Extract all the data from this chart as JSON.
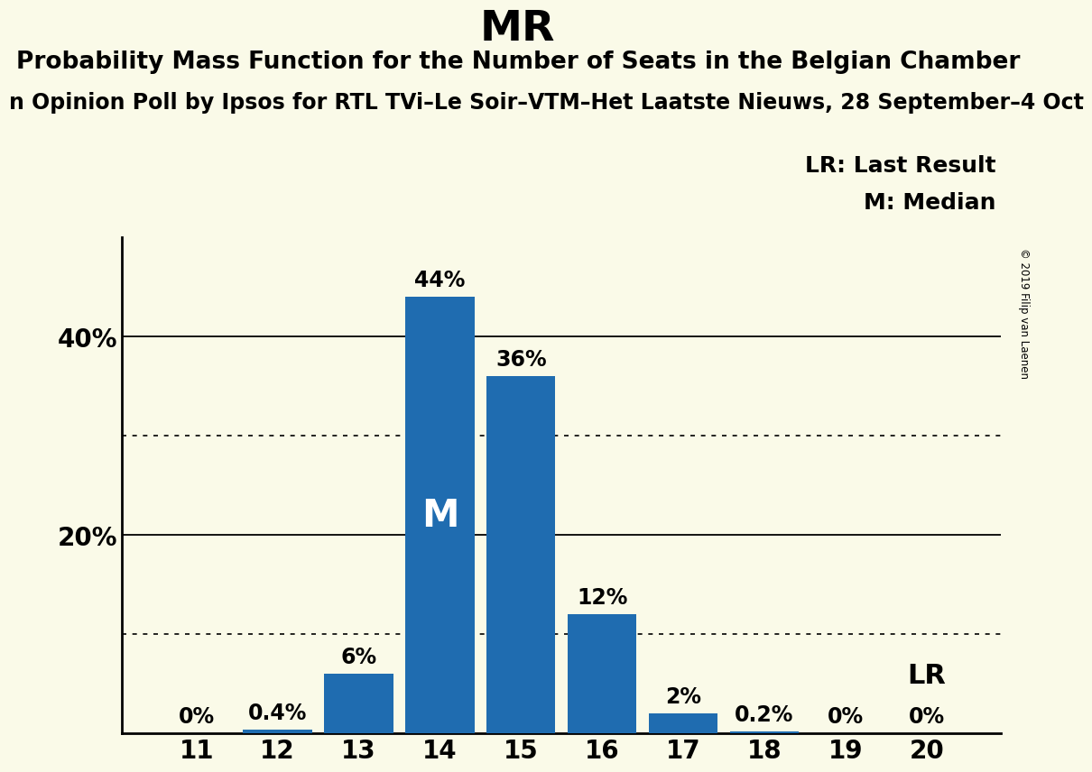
{
  "title": "MR",
  "subtitle": "Probability Mass Function for the Number of Seats in the Belgian Chamber",
  "source_line": "n Opinion Poll by Ipsos for RTL TVi–Le Soir–VTM–Het Laatste Nieuws, 28 September–4 Oct",
  "copyright": "© 2019 Filip van Laenen",
  "categories": [
    11,
    12,
    13,
    14,
    15,
    16,
    17,
    18,
    19,
    20
  ],
  "values": [
    0.0,
    0.4,
    6.0,
    44.0,
    36.0,
    12.0,
    2.0,
    0.2,
    0.0,
    0.0
  ],
  "bar_color": "#1f6cb0",
  "bar_labels": [
    "0%",
    "0.4%",
    "6%",
    "44%",
    "36%",
    "12%",
    "2%",
    "0.2%",
    "0%",
    "0%"
  ],
  "median_bar": 14,
  "median_label": "M",
  "lr_bar": 20,
  "lr_label": "LR",
  "legend_lr": "LR: Last Result",
  "legend_m": "M: Median",
  "yticks_labeled": [
    20,
    40
  ],
  "ytick_labels": [
    "20%",
    "40%"
  ],
  "dotted_lines": [
    10,
    30
  ],
  "solid_lines": [
    20,
    40
  ],
  "ylim": [
    0,
    50
  ],
  "background_color": "#fafae8",
  "title_fontsize": 34,
  "subtitle_fontsize": 19,
  "source_fontsize": 17,
  "bar_label_fontsize": 17,
  "axis_tick_fontsize": 20,
  "legend_fontsize": 18,
  "median_label_fontsize": 30,
  "lr_label_fontsize": 22
}
